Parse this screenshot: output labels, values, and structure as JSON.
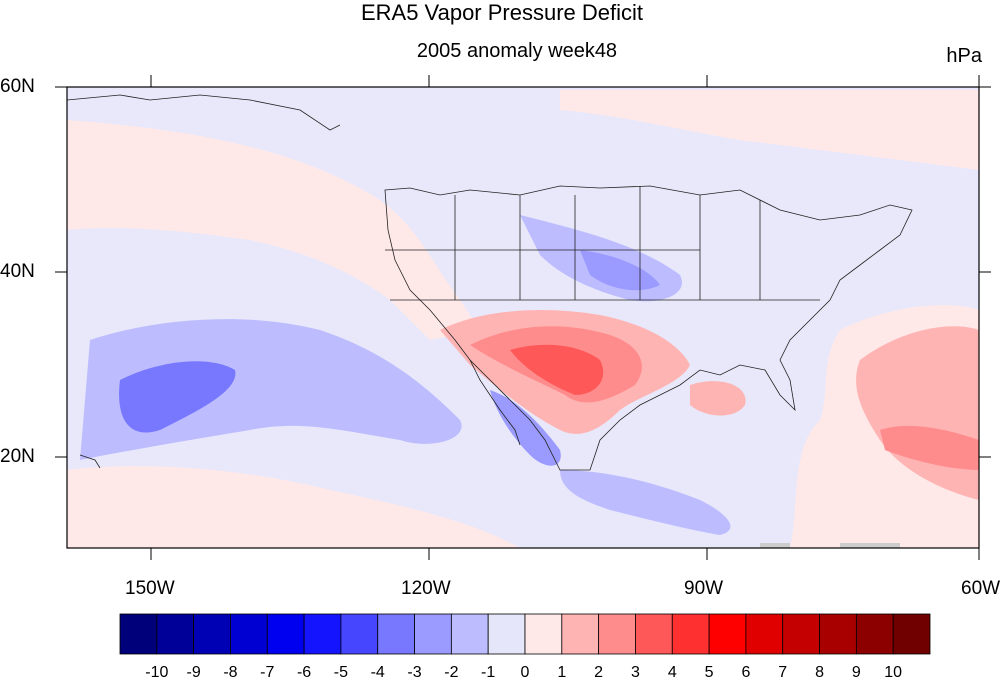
{
  "title": "ERA5 Vapor Pressure Deficit",
  "subtitle": "2005 anomaly week48",
  "units": "hPa",
  "lat_labels": [
    "60N",
    "40N",
    "20N"
  ],
  "lon_labels": [
    "150W",
    "120W",
    "90W",
    "60W"
  ],
  "colorbar": {
    "labels": [
      "-10",
      "-9",
      "-8",
      "-7",
      "-6",
      "-5",
      "-4",
      "-3",
      "-2",
      "-1",
      "0",
      "1",
      "2",
      "3",
      "4",
      "5",
      "6",
      "7",
      "8",
      "9",
      "10"
    ],
    "colors": [
      "#00007a",
      "#000098",
      "#0000b4",
      "#0000d2",
      "#0000f0",
      "#1414ff",
      "#4646ff",
      "#7878ff",
      "#9a9aff",
      "#bcbcff",
      "#e6e6fa",
      "#ffe8e8",
      "#ffb4b4",
      "#ff8c8c",
      "#ff5858",
      "#ff3030",
      "#ff0000",
      "#e00000",
      "#c40000",
      "#a80000",
      "#8c0000",
      "#700000"
    ]
  },
  "colors": {
    "background_field": "#e8e8fa",
    "neg_light": "#bcbcff",
    "neg_mid": "#9a9aff",
    "neg_strong": "#7878ff",
    "pos_light": "#ffe8e8",
    "pos_mid": "#ffb4b4",
    "pos_strong": "#ff8c8c",
    "pos_deep": "#ff5858"
  }
}
